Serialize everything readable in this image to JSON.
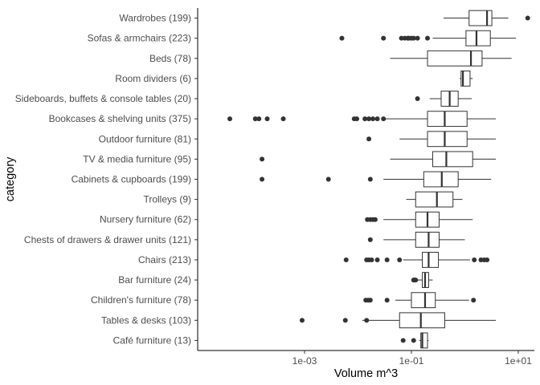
{
  "chart_data": {
    "type": "boxplot",
    "orientation": "horizontal",
    "xlabel": "Volume m^3",
    "ylabel": "category",
    "x_scale": "log10",
    "xlim": [
      1e-05,
      20
    ],
    "x_ticks": [
      0.001,
      0.1,
      10
    ],
    "x_tick_labels": [
      "1e-03",
      "1e-01",
      "1e+01"
    ],
    "grid": false,
    "categories": [
      {
        "label": "Wardrobes (199)",
        "whisker_low": 0.4,
        "q1": 1.2,
        "median": 2.6,
        "q3": 3.2,
        "whisker_high": 6.5,
        "outliers": [
          15
        ]
      },
      {
        "label": "Sofas & armchairs (223)",
        "whisker_low": 0.25,
        "q1": 1.05,
        "median": 1.65,
        "q3": 3.0,
        "whisker_high": 9.0,
        "outliers": [
          0.005,
          0.03,
          0.065,
          0.075,
          0.085,
          0.09,
          0.1,
          0.11,
          0.13,
          0.2
        ]
      },
      {
        "label": "Beds (78)",
        "whisker_low": 0.04,
        "q1": 0.2,
        "median": 1.3,
        "q3": 2.1,
        "whisker_high": 7.5,
        "outliers": []
      },
      {
        "label": "Room dividers (6)",
        "whisker_low": 0.8,
        "q1": 0.85,
        "median": 0.92,
        "q3": 1.25,
        "whisker_high": 1.4,
        "outliers": []
      },
      {
        "label": "Sideboards, buffets & console tables (20)",
        "whisker_low": 0.22,
        "q1": 0.36,
        "median": 0.52,
        "q3": 0.75,
        "whisker_high": 1.35,
        "outliers": [
          0.13
        ]
      },
      {
        "label": "Bookcases & shelving units (375)",
        "whisker_low": 0.03,
        "q1": 0.2,
        "median": 0.42,
        "q3": 1.1,
        "whisker_high": 3.8,
        "outliers": [
          4e-05,
          0.00012,
          0.00014,
          0.0002,
          0.0004,
          0.0085,
          0.0095,
          0.0135,
          0.016,
          0.019,
          0.023,
          0.03
        ]
      },
      {
        "label": "Outdoor furniture (81)",
        "whisker_low": 0.06,
        "q1": 0.2,
        "median": 0.42,
        "q3": 1.1,
        "whisker_high": 3.8,
        "outliers": [
          0.016
        ]
      },
      {
        "label": "TV & media furniture (95)",
        "whisker_low": 0.04,
        "q1": 0.25,
        "median": 0.45,
        "q3": 1.4,
        "whisker_high": 3.8,
        "outliers": [
          0.00016
        ]
      },
      {
        "label": "Cabinets & cupboards (199)",
        "whisker_low": 0.03,
        "q1": 0.17,
        "median": 0.37,
        "q3": 0.75,
        "whisker_high": 3.1,
        "outliers": [
          0.00016,
          0.0028,
          0.017
        ]
      },
      {
        "label": "Trolleys (9)",
        "whisker_low": 0.08,
        "q1": 0.12,
        "median": 0.3,
        "q3": 0.6,
        "whisker_high": 0.9,
        "outliers": []
      },
      {
        "label": "Nursery furniture (62)",
        "whisker_low": 0.03,
        "q1": 0.12,
        "median": 0.2,
        "q3": 0.33,
        "whisker_high": 1.4,
        "outliers": [
          0.015,
          0.017,
          0.019,
          0.021
        ]
      },
      {
        "label": "Chests of drawers & drawer units (121)",
        "whisker_low": 0.03,
        "q1": 0.12,
        "median": 0.21,
        "q3": 0.33,
        "whisker_high": 1.0,
        "outliers": [
          0.017
        ]
      },
      {
        "label": "Chairs (213)",
        "whisker_low": 0.07,
        "q1": 0.16,
        "median": 0.21,
        "q3": 0.32,
        "whisker_high": 1.25,
        "outliers": [
          0.006,
          0.0145,
          0.016,
          0.018,
          0.023,
          0.035,
          0.06,
          1.5,
          2.0,
          2.3,
          2.6
        ]
      },
      {
        "label": "Bar furniture (24)",
        "whisker_low": 0.13,
        "q1": 0.16,
        "median": 0.18,
        "q3": 0.21,
        "whisker_high": 0.25,
        "outliers": [
          0.11,
          0.115,
          0.12
        ]
      },
      {
        "label": "Children's furniture (78)",
        "whisker_low": 0.05,
        "q1": 0.1,
        "median": 0.18,
        "q3": 0.28,
        "whisker_high": 1.2,
        "outliers": [
          0.014,
          0.0155,
          0.017,
          0.035,
          1.45
        ]
      },
      {
        "label": "Tables & desks (103)",
        "whisker_low": 0.012,
        "q1": 0.06,
        "median": 0.15,
        "q3": 0.42,
        "whisker_high": 3.8,
        "outliers": [
          0.0009,
          0.0058,
          0.0145
        ]
      },
      {
        "label": "Café furniture (13)",
        "whisker_low": 0.14,
        "q1": 0.15,
        "median": 0.16,
        "q3": 0.2,
        "whisker_high": 0.21,
        "outliers": [
          0.07,
          0.11
        ]
      }
    ]
  }
}
